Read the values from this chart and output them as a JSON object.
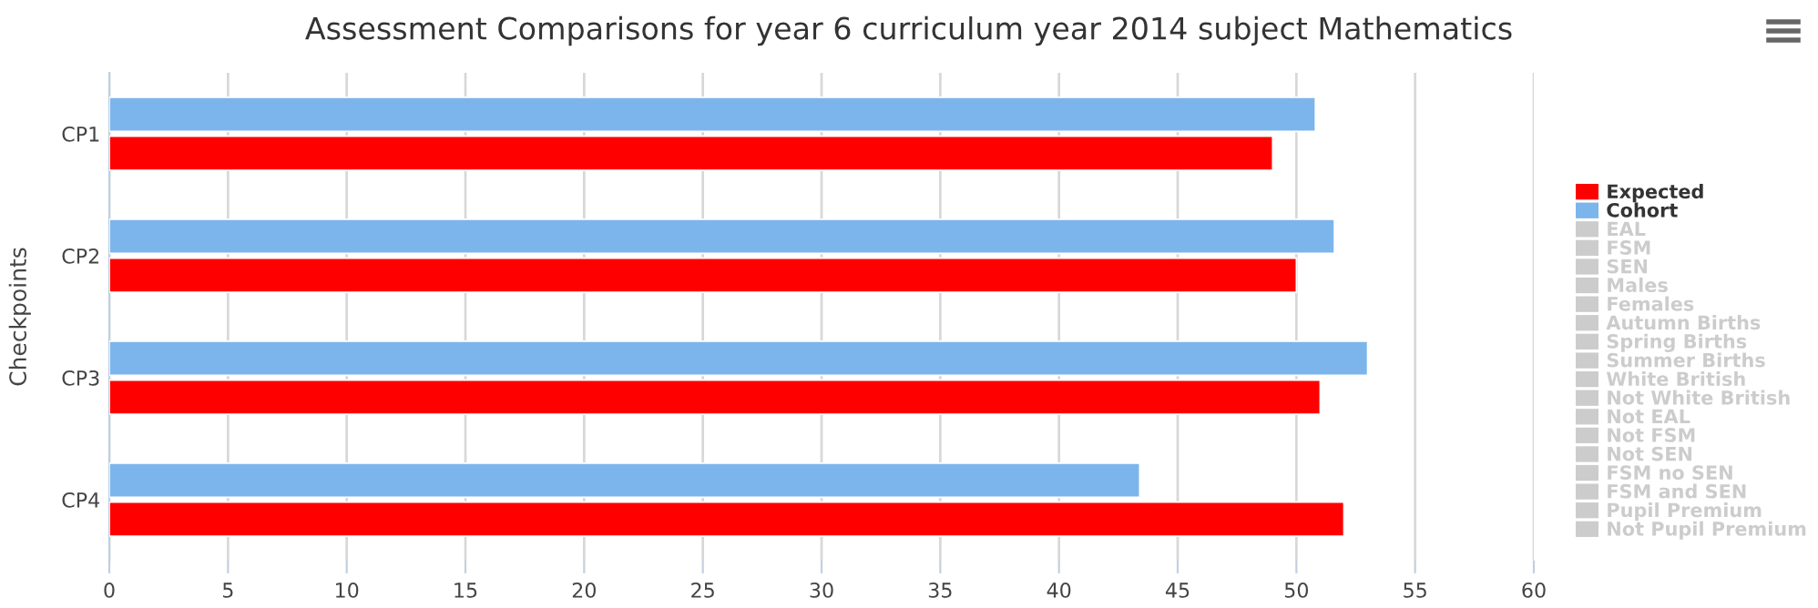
{
  "chart_data": {
    "type": "bar",
    "orientation": "horizontal",
    "title": "Assessment Comparisons for year 6 curriculum year 2014 subject Mathematics",
    "ylabel": "Checkpoints",
    "categories": [
      "CP1",
      "CP2",
      "CP3",
      "CP4"
    ],
    "series": [
      {
        "name": "Expected",
        "color": "#ff0000",
        "values": [
          49.0,
          50.0,
          51.0,
          52.0
        ]
      },
      {
        "name": "Cohort",
        "color": "#7cb5ec",
        "values": [
          50.8,
          51.6,
          53.0,
          43.4
        ]
      },
      {
        "name": "EAL",
        "color": "#cccccc",
        "values": [
          null,
          null,
          null,
          null
        ]
      },
      {
        "name": "FSM",
        "color": "#cccccc",
        "values": [
          null,
          null,
          null,
          null
        ]
      },
      {
        "name": "SEN",
        "color": "#cccccc",
        "values": [
          null,
          null,
          null,
          null
        ]
      },
      {
        "name": "Males",
        "color": "#cccccc",
        "values": [
          null,
          null,
          null,
          null
        ]
      },
      {
        "name": "Females",
        "color": "#cccccc",
        "values": [
          null,
          null,
          null,
          null
        ]
      },
      {
        "name": "Autumn Births",
        "color": "#cccccc",
        "values": [
          null,
          null,
          null,
          null
        ]
      },
      {
        "name": "Spring Births",
        "color": "#cccccc",
        "values": [
          null,
          null,
          null,
          null
        ]
      },
      {
        "name": "Summer Births",
        "color": "#cccccc",
        "values": [
          null,
          null,
          null,
          null
        ]
      },
      {
        "name": "White British",
        "color": "#cccccc",
        "values": [
          null,
          null,
          null,
          null
        ]
      },
      {
        "name": "Not White British",
        "color": "#cccccc",
        "values": [
          null,
          null,
          null,
          null
        ]
      },
      {
        "name": "Not EAL",
        "color": "#cccccc",
        "values": [
          null,
          null,
          null,
          null
        ]
      },
      {
        "name": "Not FSM",
        "color": "#cccccc",
        "values": [
          null,
          null,
          null,
          null
        ]
      },
      {
        "name": "Not SEN",
        "color": "#cccccc",
        "values": [
          null,
          null,
          null,
          null
        ]
      },
      {
        "name": "FSM no SEN",
        "color": "#cccccc",
        "values": [
          null,
          null,
          null,
          null
        ]
      },
      {
        "name": "FSM and SEN",
        "color": "#cccccc",
        "values": [
          null,
          null,
          null,
          null
        ]
      },
      {
        "name": "Pupil Premium",
        "color": "#cccccc",
        "values": [
          null,
          null,
          null,
          null
        ]
      },
      {
        "name": "Not Pupil Premium",
        "color": "#cccccc",
        "values": [
          null,
          null,
          null,
          null
        ]
      }
    ],
    "xlim": [
      0,
      60
    ],
    "xticks": [
      0,
      5,
      10,
      15,
      20,
      25,
      30,
      35,
      40,
      45,
      50,
      55,
      60
    ],
    "grid": "x",
    "legend": "right"
  }
}
